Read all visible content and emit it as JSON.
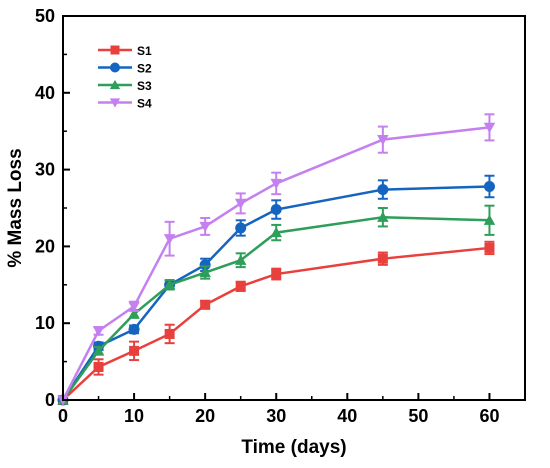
{
  "chart_data": {
    "type": "line",
    "xlabel": "Time (days)",
    "ylabel": "% Mass Loss",
    "xlim": [
      0,
      65
    ],
    "ylim": [
      0,
      50
    ],
    "xticks": [
      0,
      10,
      20,
      30,
      40,
      50,
      60
    ],
    "yticks": [
      0,
      10,
      20,
      30,
      40,
      50
    ],
    "x": [
      0,
      5,
      10,
      15,
      20,
      25,
      30,
      45,
      60
    ],
    "grid": false,
    "legend_position": "top-left",
    "series": [
      {
        "name": "S1",
        "color": "#e8403c",
        "marker": "square",
        "values": [
          0,
          4.3,
          6.4,
          8.6,
          12.4,
          14.8,
          16.4,
          18.4,
          19.8
        ],
        "errors": [
          0,
          1.0,
          1.2,
          1.2,
          0.5,
          0.6,
          0.7,
          0.8,
          0.8
        ]
      },
      {
        "name": "S2",
        "color": "#1565c0",
        "marker": "circle",
        "values": [
          0,
          7.0,
          9.2,
          15.0,
          17.6,
          22.4,
          24.8,
          27.4,
          27.8
        ],
        "errors": [
          0,
          0.5,
          0.5,
          0.6,
          0.8,
          1.0,
          1.2,
          1.2,
          1.4
        ]
      },
      {
        "name": "S3",
        "color": "#2e9e5a",
        "marker": "triangle-up",
        "values": [
          0,
          6.4,
          11.2,
          15.0,
          16.6,
          18.2,
          21.8,
          23.8,
          23.4
        ],
        "errors": [
          0,
          0.5,
          0.5,
          0.6,
          0.8,
          0.9,
          1.0,
          1.2,
          1.9
        ]
      },
      {
        "name": "S4",
        "color": "#c580f0",
        "marker": "triangle-down",
        "values": [
          0,
          9.0,
          12.2,
          21.0,
          22.6,
          25.6,
          28.2,
          33.9,
          35.5
        ],
        "errors": [
          0,
          0.5,
          0.6,
          2.2,
          1.1,
          1.3,
          1.4,
          1.7,
          1.7
        ]
      }
    ]
  }
}
